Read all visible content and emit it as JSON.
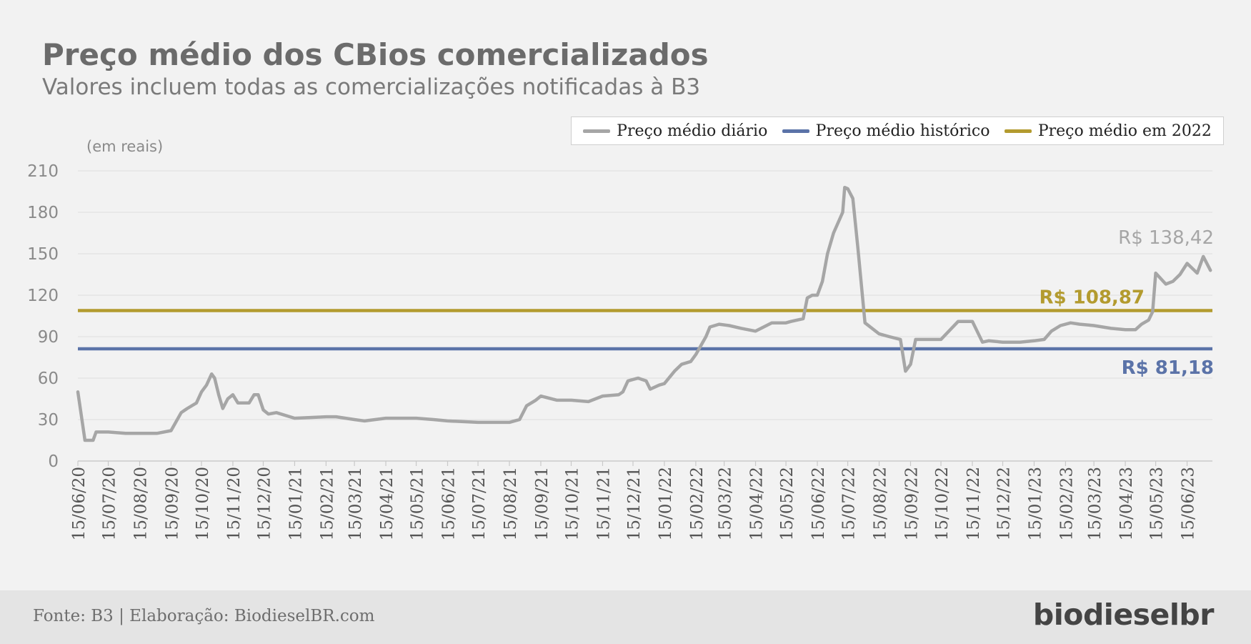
{
  "header": {
    "title": "Preço médio dos CBios comercializados",
    "subtitle": "Valores incluem todas as comercializações notificadas à B3"
  },
  "unit_label": "(em reais)",
  "legend": [
    {
      "label": "Preço médio diário",
      "color": "#a6a6a6"
    },
    {
      "label": "Preço médio histórico",
      "color": "#5b73a8"
    },
    {
      "label": "Preço médio em 2022",
      "color": "#b39b2f"
    }
  ],
  "footer": {
    "source": "Fonte: B3 | Elaboração: BiodieselBR.com",
    "brand": "biodieselbr"
  },
  "chart_data": {
    "type": "line",
    "ylim": [
      0,
      210
    ],
    "yticks": [
      "0",
      "30",
      "60",
      "90",
      "120",
      "150",
      "180",
      "210"
    ],
    "grid": true,
    "legend_position": "top-right",
    "x_categories": [
      "15/06/20",
      "15/07/20",
      "15/08/20",
      "15/09/20",
      "15/10/20",
      "15/11/20",
      "15/12/20",
      "15/01/21",
      "15/02/21",
      "15/03/21",
      "15/04/21",
      "15/05/21",
      "15/06/21",
      "15/07/21",
      "15/08/21",
      "15/09/21",
      "15/10/21",
      "15/11/21",
      "15/12/21",
      "15/01/22",
      "15/02/22",
      "15/03/22",
      "15/04/22",
      "15/05/22",
      "15/06/22",
      "15/07/22",
      "15/08/22",
      "15/09/22",
      "15/10/22",
      "15/11/22",
      "15/12/22",
      "15/01/23",
      "15/02/23",
      "15/03/23",
      "15/04/23",
      "15/05/23",
      "15/06/23"
    ],
    "series": [
      {
        "name": "Preço médio diário",
        "color": "#a6a6a6",
        "end_label": "R$ 138,42",
        "x": [
          "15/06/20",
          "22/06/20",
          "30/06/20",
          "03/07/20",
          "08/07/20",
          "15/07/20",
          "01/08/20",
          "15/08/20",
          "01/09/20",
          "15/09/20",
          "25/09/20",
          "01/10/20",
          "10/10/20",
          "15/10/20",
          "20/10/20",
          "25/10/20",
          "28/10/20",
          "01/11/20",
          "05/11/20",
          "10/11/20",
          "15/11/20",
          "20/11/20",
          "01/12/20",
          "06/12/20",
          "10/12/20",
          "15/12/20",
          "20/12/20",
          "28/12/20",
          "15/01/21",
          "15/02/21",
          "25/02/21",
          "15/03/21",
          "25/03/21",
          "15/04/21",
          "15/05/21",
          "01/06/21",
          "15/06/21",
          "15/07/21",
          "15/08/21",
          "20/08/21",
          "25/08/21",
          "01/09/21",
          "10/09/21",
          "15/09/21",
          "01/10/21",
          "15/10/21",
          "01/11/21",
          "15/11/21",
          "01/12/21",
          "05/12/21",
          "10/12/21",
          "20/12/21",
          "28/12/21",
          "01/01/22",
          "10/01/22",
          "15/01/22",
          "25/01/22",
          "01/02/22",
          "10/02/22",
          "15/02/22",
          "25/02/22",
          "01/03/22",
          "10/03/22",
          "20/03/22",
          "01/04/22",
          "15/04/22",
          "01/05/22",
          "10/05/22",
          "15/05/22",
          "20/05/22",
          "01/06/22",
          "05/06/22",
          "10/06/22",
          "15/06/22",
          "20/06/22",
          "25/06/22",
          "01/07/22",
          "10/07/22",
          "12/07/22",
          "15/07/22",
          "20/07/22",
          "25/07/22",
          "01/08/22",
          "15/08/22",
          "25/08/22",
          "05/09/22",
          "10/09/22",
          "15/09/22",
          "20/09/22",
          "01/10/22",
          "15/10/22",
          "01/11/22",
          "15/11/22",
          "25/11/22",
          "01/12/22",
          "15/12/22",
          "01/01/23",
          "15/01/23",
          "25/01/23",
          "01/02/23",
          "10/02/23",
          "20/02/23",
          "01/03/23",
          "15/03/23",
          "01/04/23",
          "15/04/23",
          "25/04/23",
          "01/05/23",
          "08/05/23",
          "12/05/23",
          "15/05/23",
          "25/05/23",
          "01/06/23",
          "08/06/23",
          "15/06/23",
          "25/06/23",
          "01/07/23",
          "08/07/23"
        ],
        "values": [
          50,
          15,
          15,
          21,
          21,
          21,
          20,
          20,
          20,
          22,
          35,
          38,
          42,
          50,
          55,
          63,
          60,
          48,
          38,
          45,
          48,
          42,
          42,
          48,
          48,
          37,
          34,
          35,
          31,
          32,
          32,
          30,
          29,
          31,
          31,
          30,
          29,
          28,
          28,
          29,
          30,
          40,
          44,
          47,
          44,
          44,
          43,
          47,
          48,
          50,
          58,
          60,
          58,
          52,
          55,
          56,
          65,
          70,
          72,
          77,
          90,
          97,
          99,
          98,
          96,
          94,
          100,
          100,
          100,
          101,
          103,
          118,
          120,
          120,
          130,
          150,
          165,
          180,
          198,
          197,
          190,
          154,
          100,
          92,
          90,
          88,
          65,
          70,
          88,
          88,
          88,
          101,
          101,
          86,
          87,
          86,
          86,
          87,
          88,
          94,
          98,
          100,
          99,
          98,
          96,
          95,
          95,
          99,
          102,
          108,
          136,
          128,
          130,
          135,
          143,
          136,
          148,
          138
        ]
      },
      {
        "name": "Preço médio histórico",
        "color": "#5b73a8",
        "value": 81.18,
        "end_label": "R$ 81,18"
      },
      {
        "name": "Preço médio em 2022",
        "color": "#b39b2f",
        "value": 108.87,
        "end_label": "R$ 108,87"
      }
    ]
  }
}
